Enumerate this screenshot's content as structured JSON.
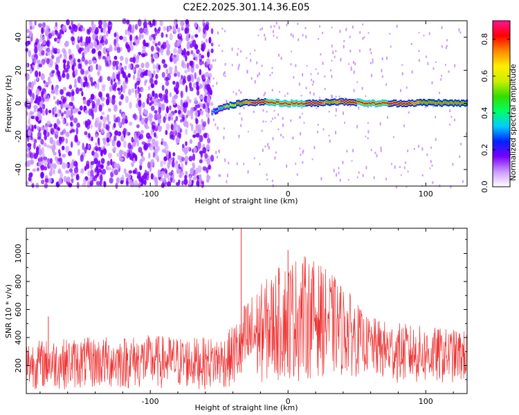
{
  "chart_data": [
    {
      "type": "heatmap",
      "title": "C2E2.2025.301.14.36.E05",
      "xlabel": "Height of straight line (km)",
      "ylabel": "Frequency (Hz)",
      "xlim": [
        -190,
        130
      ],
      "ylim": [
        -50,
        50
      ],
      "x_ticks": [
        -100,
        0,
        100
      ],
      "y_ticks": [
        -40,
        -20,
        0,
        20,
        40
      ],
      "colorbar": {
        "label": "Normalized spectral amplitude",
        "range": [
          0,
          0.9
        ],
        "ticks": [
          0,
          0.2,
          0.4,
          0.6,
          0.8
        ],
        "colors": [
          "#ffffff",
          "#cc99ff",
          "#7a00ff",
          "#0022ff",
          "#00ccff",
          "#00ff66",
          "#33dd00",
          "#ccee00",
          "#ffee00",
          "#ff8800",
          "#ff0000",
          "#ff1493"
        ]
      },
      "features": {
        "noise_region_x": [
          -190,
          -55
        ],
        "noise_level": [
          0.05,
          0.2
        ],
        "signal_line": {
          "x": [
            -55,
            -45,
            -35,
            -20,
            -10,
            0,
            20,
            30,
            45,
            60,
            80,
            100,
            130
          ],
          "y": [
            -5,
            -2,
            0,
            1,
            0.5,
            0,
            0,
            1,
            1,
            0,
            0,
            0.5,
            0
          ],
          "amplitude": [
            0.3,
            0.55,
            0.75,
            0.8,
            0.85,
            0.85,
            0.8,
            0.75,
            0.8,
            0.85,
            0.8,
            0.75,
            0.7
          ]
        }
      }
    },
    {
      "type": "line",
      "title": "",
      "xlabel": "Height of straight line (km)",
      "ylabel": "SNR (10 * v/v)",
      "xlim": [
        -190,
        130
      ],
      "ylim": [
        0,
        1180
      ],
      "x_ticks": [
        -100,
        0,
        100
      ],
      "y_ticks": [
        200,
        400,
        600,
        800,
        1000
      ],
      "series": [
        {
          "color": "#ee3333",
          "envelope": {
            "x": [
              -190,
              -150,
              -100,
              -60,
              -45,
              -36,
              -30,
              -10,
              0,
              10,
              20,
              35,
              50,
              55,
              70,
              100,
              130
            ],
            "low": [
              30,
              30,
              30,
              30,
              35,
              40,
              60,
              80,
              90,
              80,
              120,
              120,
              120,
              150,
              80,
              60,
              80
            ],
            "high": [
              380,
              400,
              420,
              400,
              420,
              560,
              680,
              880,
              960,
              1000,
              950,
              830,
              660,
              560,
              520,
              480,
              450
            ]
          },
          "peaks": [
            {
              "x": -34,
              "y": 1180
            },
            {
              "x": 0,
              "y": 1025
            },
            {
              "x": -174,
              "y": 550
            }
          ]
        }
      ]
    }
  ]
}
